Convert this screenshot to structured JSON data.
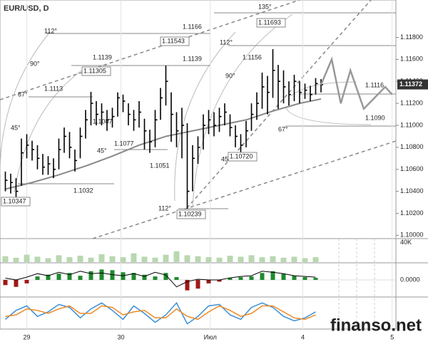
{
  "chart_data": {
    "type": "ohlc",
    "title": "EUR/USD, D",
    "high": [
      1.1058,
      1.1056,
      1.1052,
      1.1088,
      1.1092,
      1.1086,
      1.1082,
      1.1074,
      1.1072,
      1.107,
      1.1088,
      1.1098,
      1.1094,
      1.1078,
      1.1098,
      1.1114,
      1.11305,
      1.1122,
      1.112,
      1.1114,
      1.1116,
      1.113,
      1.1128,
      1.112,
      1.1114,
      1.1122,
      1.1106,
      1.1096,
      1.1114,
      1.1134,
      1.11543,
      1.113,
      1.1112,
      1.1116,
      1.1102,
      1.1082,
      1.109,
      1.111,
      1.1114,
      1.1112,
      1.1116,
      1.112,
      1.111,
      1.11,
      1.1092,
      1.1104,
      1.112,
      1.113,
      1.1148,
      1.1145,
      1.11693,
      1.1155,
      1.115,
      1.114,
      1.1146,
      1.114,
      1.1138,
      1.1136,
      1.1143,
      1.1142
    ],
    "low": [
      1.104,
      1.1038,
      1.10347,
      1.1045,
      1.107,
      1.1068,
      1.106,
      1.1055,
      1.1055,
      1.1052,
      1.106,
      1.1075,
      1.107,
      1.1058,
      1.107,
      1.1088,
      1.11,
      1.11,
      1.11,
      1.1095,
      1.1098,
      1.1108,
      1.1112,
      1.11,
      1.1095,
      1.1098,
      1.1078,
      1.1075,
      1.108,
      1.1105,
      1.1118,
      1.1085,
      1.108,
      1.107,
      1.10239,
      1.104,
      1.1065,
      1.1078,
      1.1092,
      1.109,
      1.1094,
      1.11,
      1.109,
      1.108,
      1.1072,
      1.108,
      1.1095,
      1.1105,
      1.1115,
      1.111,
      1.1125,
      1.1115,
      1.112,
      1.1118,
      1.1122,
      1.112,
      1.1124,
      1.1122,
      1.1128,
      1.113
    ],
    "close": [
      1.105,
      1.1048,
      1.104,
      1.1075,
      1.1082,
      1.1078,
      1.107,
      1.1062,
      1.1065,
      1.106,
      1.1078,
      1.109,
      1.108,
      1.1068,
      1.109,
      1.1105,
      1.112,
      1.111,
      1.1112,
      1.1105,
      1.1108,
      1.1125,
      1.1122,
      1.111,
      1.1105,
      1.1112,
      1.1095,
      1.1085,
      1.1105,
      1.1125,
      1.114,
      1.111,
      1.1095,
      1.11,
      1.104,
      1.107,
      1.108,
      1.11,
      1.1105,
      1.11,
      1.1108,
      1.1112,
      1.1098,
      1.109,
      1.1082,
      1.1095,
      1.111,
      1.112,
      1.1135,
      1.113,
      1.115,
      1.114,
      1.1135,
      1.1128,
      1.114,
      1.113,
      1.1132,
      1.1128,
      1.1138,
      1.1137
    ],
    "ma": {
      "x": [
        0,
        5,
        10,
        15,
        20,
        25,
        30,
        35,
        40,
        45,
        50,
        55,
        59
      ],
      "values": [
        1.1042,
        1.1048,
        1.1055,
        1.1063,
        1.1072,
        1.1082,
        1.109,
        1.1095,
        1.11,
        1.1105,
        1.1113,
        1.112,
        1.1124
      ]
    },
    "forecast": {
      "x": [
        59,
        61,
        62.7,
        64.5,
        67,
        71,
        72.3
      ],
      "values": [
        1.1137,
        1.116,
        1.112,
        1.115,
        1.1115,
        1.1135,
        1.1128
      ]
    },
    "xlim": [
      -1,
      73
    ],
    "ylim": [
      1.0997,
      1.1214
    ],
    "xticks": [
      {
        "value": 4,
        "label": "29"
      },
      {
        "value": 21.6,
        "label": "30"
      },
      {
        "value": 38.3,
        "label": "Июл"
      },
      {
        "value": 55.6,
        "label": "4"
      },
      {
        "value": 72.3,
        "label": "5"
      }
    ],
    "yticks": [
      {
        "value": 1.1,
        "label": "1.10000"
      },
      {
        "value": 1.102,
        "label": "1.10200"
      },
      {
        "value": 1.104,
        "label": "1.10400"
      },
      {
        "value": 1.106,
        "label": "1.10600"
      },
      {
        "value": 1.108,
        "label": "1.10800"
      },
      {
        "value": 1.11,
        "label": "1.11000"
      },
      {
        "value": 1.112,
        "label": "1.11200"
      },
      {
        "value": 1.114,
        "label": "1.11400"
      },
      {
        "value": 1.116,
        "label": "1.11600"
      },
      {
        "value": 1.118,
        "label": "1.11800"
      }
    ],
    "last_price": {
      "value": 1.11372,
      "label": "1.11372"
    },
    "annotations": [
      "112°",
      "90°",
      "67°",
      "45°",
      "1.1113",
      "1.1139",
      "1.11305",
      "1.1087",
      "45°",
      "1.1077",
      "1.1051",
      "1.1032",
      "1.10347",
      "1.1166",
      "1.11543",
      "1.1139",
      "112°",
      "90°",
      "1.1156",
      "135°",
      "1.11693",
      "1.1116",
      "1.1090",
      "67°",
      "45°",
      "1.10720",
      "112°",
      "1.10239"
    ],
    "sub_x": [
      0,
      2,
      4,
      6,
      8,
      10,
      12,
      14,
      16,
      18,
      20,
      22,
      24,
      26,
      28,
      30,
      32,
      34,
      36,
      38,
      40,
      42,
      44,
      46,
      48,
      50,
      52,
      54,
      56,
      58
    ],
    "volume": {
      "values": [
        12000,
        9000,
        15000,
        11000,
        8000,
        14000,
        10000,
        13000,
        9000,
        16000,
        12000,
        10000,
        18000,
        11000,
        9000,
        15000,
        22000,
        14000,
        12000,
        10000,
        9000,
        13000,
        11000,
        14000,
        10000,
        12000,
        9000,
        11000,
        8000,
        10000
      ],
      "ylim": [
        0,
        45000
      ],
      "yticks": [
        {
          "value": 40000,
          "label": "40K"
        }
      ],
      "color": "#b8d8b0"
    },
    "macd": {
      "histogram": [
        -0.0015,
        -0.002,
        -0.001,
        0.001,
        0.0015,
        0.0018,
        0.002,
        0.0012,
        0.0025,
        0.003,
        0.0028,
        0.0022,
        0.002,
        0.0015,
        0.001,
        0.002,
        0.0008,
        -0.003,
        -0.0025,
        -0.001,
        -0.0005,
        0.0005,
        0.0008,
        0.001,
        0.002,
        0.0025,
        0.0018,
        0.0012,
        0.0008,
        0.0006
      ],
      "line": [
        0.0005,
        0,
        0.0008,
        0.0018,
        0.0012,
        0.0022,
        0.0015,
        0.0025,
        0.0018,
        0.002,
        0.0015,
        0.0012,
        0.0018,
        0.001,
        0.0022,
        0.0014,
        -0.002,
        -0.0005,
        0.0002,
        0,
        0,
        0.0006,
        0.001,
        0.0012,
        0.0025,
        0.0022,
        0.0018,
        0.0012,
        0.001,
        0.0008
      ],
      "ylim": [
        -0.0045,
        0.0045
      ],
      "yticks": [
        {
          "value": 0,
          "label": "0.0000"
        }
      ],
      "up_color": "#1e8a2e",
      "down_color": "#a01818"
    },
    "stochastic": {
      "ylim": [
        0,
        100
      ],
      "series": [
        {
          "color": "#3a8fd8",
          "values": [
            30,
            60,
            75,
            40,
            55,
            80,
            70,
            35,
            65,
            85,
            60,
            30,
            75,
            50,
            20,
            45,
            85,
            15,
            40,
            75,
            80,
            45,
            30,
            70,
            85,
            70,
            40,
            25,
            35,
            55
          ]
        },
        {
          "color": "#f08a24",
          "values": [
            40,
            45,
            65,
            60,
            50,
            65,
            75,
            50,
            50,
            75,
            70,
            45,
            55,
            60,
            35,
            35,
            65,
            40,
            30,
            55,
            75,
            60,
            40,
            50,
            75,
            75,
            55,
            35,
            30,
            45
          ]
        }
      ]
    },
    "watermark": "finanso.net"
  }
}
